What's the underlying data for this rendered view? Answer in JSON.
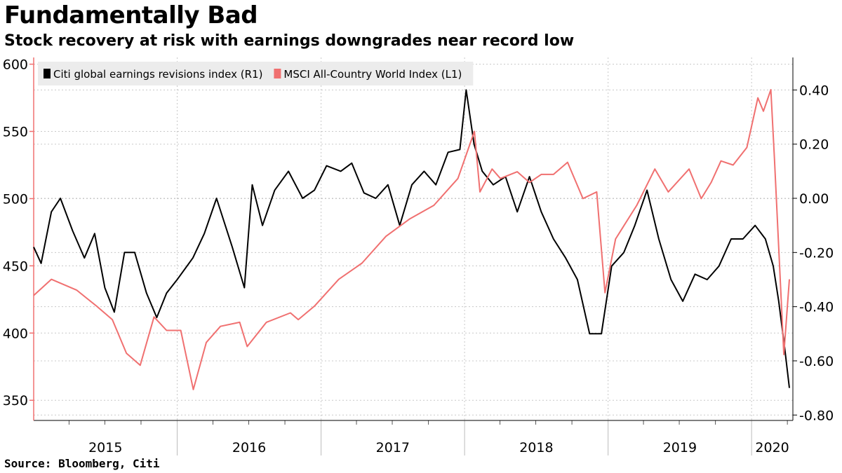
{
  "header": {
    "title": "Fundamentally Bad",
    "subtitle": "Stock recovery at risk with earnings downgrades near record low"
  },
  "footer": {
    "source": "Source: Bloomberg, Citi"
  },
  "colors": {
    "series_r1": "#000000",
    "series_l1": "#f07070",
    "grid": "#c8c8c8"
  },
  "chart_data": {
    "type": "line",
    "legend_position": "top-left",
    "grid": true,
    "x_axis": {
      "type": "date",
      "range": [
        "2015-01-01",
        "2020-04-15"
      ],
      "year_labels": [
        "2015",
        "2016",
        "2017",
        "2018",
        "2019",
        "2020"
      ]
    },
    "y_left": {
      "range": [
        335,
        605
      ],
      "ticks": [
        350,
        400,
        450,
        500,
        550,
        600
      ],
      "tick_labels": [
        "350",
        "400",
        "450",
        "500",
        "550",
        "600"
      ]
    },
    "y_right": {
      "range": [
        -0.82,
        0.52
      ],
      "ticks": [
        -0.8,
        -0.6,
        -0.4,
        -0.2,
        0.0,
        0.2,
        0.4
      ],
      "tick_labels": [
        "-0.80",
        "-0.60",
        "-0.40",
        "-0.20",
        "0.00",
        "0.20",
        "0.40"
      ]
    },
    "series": [
      {
        "name": "Citi global earnings revisions index (R1)",
        "axis": "right",
        "color": "#000000",
        "x": [
          "2015-01-01",
          "2015-01-20",
          "2015-02-15",
          "2015-03-10",
          "2015-04-10",
          "2015-05-10",
          "2015-06-05",
          "2015-07-01",
          "2015-07-25",
          "2015-08-20",
          "2015-09-15",
          "2015-10-15",
          "2015-11-10",
          "2015-12-05",
          "2016-01-01",
          "2016-02-10",
          "2016-03-10",
          "2016-04-10",
          "2016-05-20",
          "2016-06-20",
          "2016-07-10",
          "2016-08-05",
          "2016-09-05",
          "2016-10-10",
          "2016-11-15",
          "2016-12-15",
          "2017-01-15",
          "2017-02-20",
          "2017-03-20",
          "2017-04-20",
          "2017-05-20",
          "2017-06-20",
          "2017-07-20",
          "2017-08-20",
          "2017-09-20",
          "2017-10-20",
          "2017-11-20",
          "2017-12-20",
          "2018-01-05",
          "2018-01-25",
          "2018-02-15",
          "2018-03-15",
          "2018-04-15",
          "2018-05-15",
          "2018-06-15",
          "2018-07-15",
          "2018-08-15",
          "2018-09-15",
          "2018-10-15",
          "2018-11-15",
          "2018-12-15",
          "2019-01-10",
          "2019-02-10",
          "2019-03-10",
          "2019-04-10",
          "2019-05-10",
          "2019-06-10",
          "2019-07-10",
          "2019-08-10",
          "2019-09-10",
          "2019-10-10",
          "2019-11-10",
          "2019-12-10",
          "2020-01-10",
          "2020-02-05",
          "2020-02-25",
          "2020-03-10",
          "2020-03-25",
          "2020-04-06"
        ],
        "y": [
          -0.18,
          -0.24,
          -0.05,
          0.0,
          -0.12,
          -0.22,
          -0.13,
          -0.33,
          -0.42,
          -0.2,
          -0.2,
          -0.35,
          -0.44,
          -0.35,
          -0.3,
          -0.22,
          -0.13,
          0.0,
          -0.18,
          -0.33,
          0.05,
          -0.1,
          0.03,
          0.1,
          0.0,
          0.03,
          0.12,
          0.1,
          0.13,
          0.02,
          0.0,
          0.05,
          -0.1,
          0.05,
          0.1,
          0.05,
          0.17,
          0.18,
          0.4,
          0.2,
          0.1,
          0.05,
          0.08,
          -0.05,
          0.08,
          -0.05,
          -0.15,
          -0.22,
          -0.3,
          -0.5,
          -0.5,
          -0.25,
          -0.2,
          -0.1,
          0.03,
          -0.15,
          -0.3,
          -0.38,
          -0.28,
          -0.3,
          -0.25,
          -0.15,
          -0.15,
          -0.1,
          -0.15,
          -0.25,
          -0.38,
          -0.55,
          -0.7
        ]
      },
      {
        "name": "MSCI All-Country World Index (L1)",
        "axis": "left",
        "color": "#f07070",
        "x": [
          "2015-01-01",
          "2015-02-15",
          "2015-04-20",
          "2015-06-10",
          "2015-07-20",
          "2015-08-25",
          "2015-09-29",
          "2015-11-03",
          "2015-12-05",
          "2016-01-10",
          "2016-02-11",
          "2016-03-15",
          "2016-04-20",
          "2016-06-08",
          "2016-06-27",
          "2016-08-15",
          "2016-10-15",
          "2016-11-04",
          "2016-12-15",
          "2017-02-15",
          "2017-04-15",
          "2017-06-15",
          "2017-08-15",
          "2017-10-15",
          "2017-12-15",
          "2018-01-26",
          "2018-02-09",
          "2018-03-12",
          "2018-04-02",
          "2018-05-15",
          "2018-06-15",
          "2018-07-15",
          "2018-08-15",
          "2018-09-20",
          "2018-10-29",
          "2018-12-03",
          "2018-12-24",
          "2019-01-20",
          "2019-03-15",
          "2019-04-30",
          "2019-06-03",
          "2019-07-26",
          "2019-08-26",
          "2019-09-20",
          "2019-10-15",
          "2019-11-15",
          "2019-12-20",
          "2020-01-17",
          "2020-01-31",
          "2020-02-19",
          "2020-02-28",
          "2020-03-23",
          "2020-04-06"
        ],
        "y": [
          428,
          440,
          432,
          420,
          410,
          385,
          376,
          412,
          402,
          402,
          358,
          393,
          405,
          408,
          390,
          408,
          415,
          410,
          420,
          440,
          452,
          472,
          485,
          495,
          515,
          550,
          505,
          522,
          515,
          520,
          512,
          518,
          518,
          527,
          500,
          505,
          430,
          470,
          495,
          522,
          505,
          522,
          500,
          512,
          528,
          525,
          538,
          575,
          565,
          581,
          530,
          384,
          440
        ]
      }
    ]
  }
}
